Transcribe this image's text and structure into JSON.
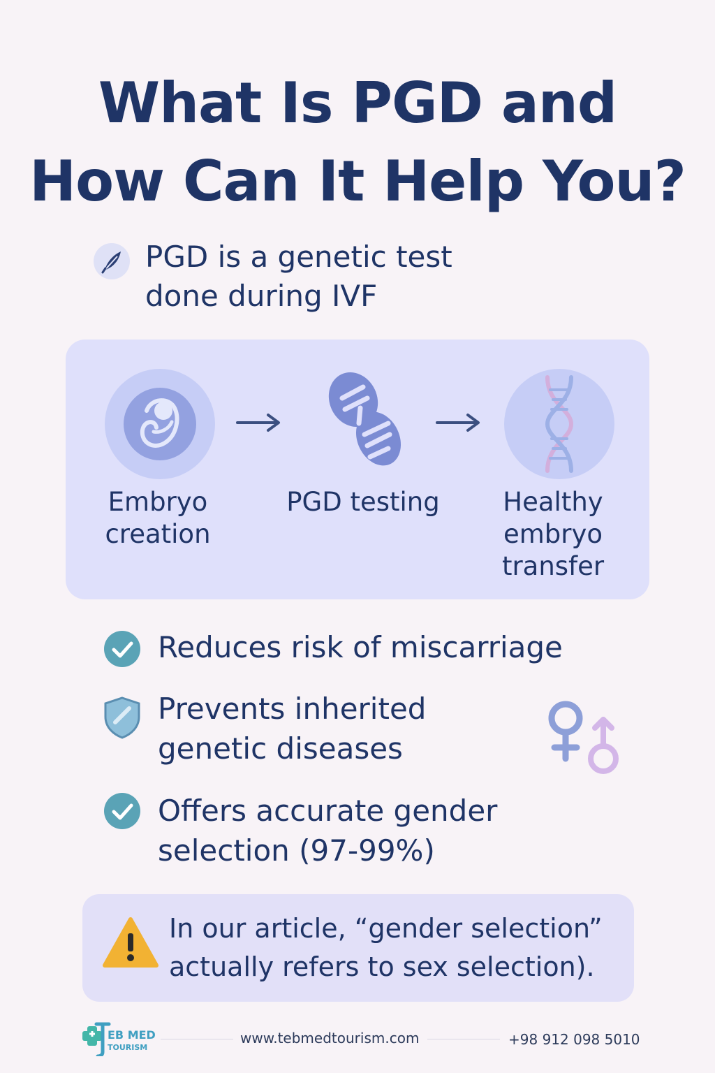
{
  "title": {
    "line1": "What Is PGD and",
    "line2": "How Can It Help You?"
  },
  "intro": {
    "icon": "quill-icon",
    "line1": "PGD is a genetic test",
    "line2": "done during IVF"
  },
  "process": {
    "steps": [
      {
        "icon": "embryo-icon",
        "line1": "Embryo",
        "line2": "creation",
        "line3": ""
      },
      {
        "icon": "dna-test-icon",
        "line1": "PGD testing",
        "line2": "",
        "line3": ""
      },
      {
        "icon": "dna-icon",
        "line1": "Healthy",
        "line2": "embryo",
        "line3": "transfer"
      }
    ]
  },
  "benefits": [
    {
      "icon": "check-circle-icon",
      "line1": "Reduces risk of miscarriage",
      "line2": ""
    },
    {
      "icon": "shield-icon",
      "line1": "Prevents inherited",
      "line2": "genetic diseases"
    },
    {
      "icon": "check-circle-icon",
      "line1": "Offers accurate gender",
      "line2": "selection (97-99%)"
    }
  ],
  "note": {
    "icon": "warning-icon",
    "line1": "In our article, “gender selection”",
    "line2": "actually refers to sex selection)."
  },
  "footer": {
    "logo_main": "EB MED",
    "logo_sub": "TOURISM",
    "website": "www.tebmedtourism.com",
    "phone": "+98 912 098 5010"
  },
  "colors": {
    "title": "#1f3466",
    "panel": "#dfe0fb",
    "check": "#5aa3b6",
    "female_symbol": "#8d9fd8",
    "male_symbol": "#d3b6e8",
    "warning": "#f2b233"
  }
}
